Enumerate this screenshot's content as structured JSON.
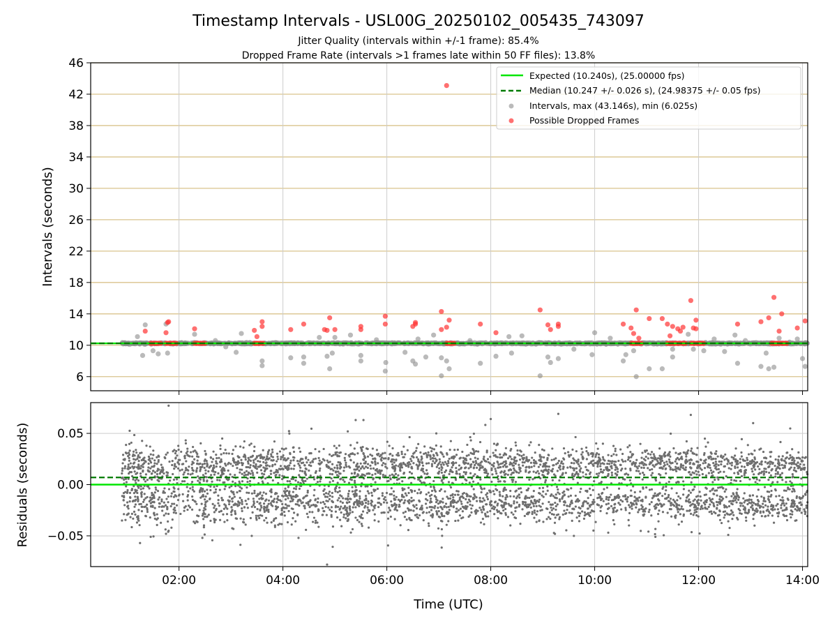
{
  "figure": {
    "title": "Timestamp Intervals - USL00G_20250102_005435_743097",
    "subtitle_1": "Jitter Quality (intervals within +/-1 frame): 85.4%",
    "subtitle_2": "Dropped Frame Rate (intervals >1 frames late within 50 FF files): 13.8%",
    "colors": {
      "expected": "#00e600",
      "median": "#007a00",
      "intervals": "#8c8c8c",
      "dropped": "#ff3333",
      "hgrid_top": "#d9c38c",
      "grid": "#cccccc",
      "residuals": "#6e6e6e"
    }
  },
  "chart_data": [
    {
      "type": "scatter",
      "name": "intervals-panel",
      "ylabel": "Intervals (seconds)",
      "ylim": [
        4.2,
        46
      ],
      "yticks": [
        "6",
        "10",
        "14",
        "18",
        "22",
        "26",
        "30",
        "34",
        "38",
        "42",
        "46"
      ],
      "ytick_values": [
        6,
        10,
        14,
        18,
        22,
        26,
        30,
        34,
        38,
        42,
        46
      ],
      "xlim_hours": [
        0.3,
        14.1
      ],
      "grid": "horizontal gridlines at y ticks, vertical gridlines at x ticks",
      "legend_position": "upper right",
      "legend": [
        {
          "label": "Expected (10.240s), (25.00000 fps)",
          "style": "solid-line",
          "color": "#00e600"
        },
        {
          "label": "Median (10.247 +/- 0.026 s), (24.98375 +/- 0.05 fps)",
          "style": "dashed-line",
          "color": "#007a00"
        },
        {
          "label": "Intervals, max (43.146s), min (6.025s)",
          "style": "dot",
          "color": "#8c8c8c"
        },
        {
          "label": "Possible Dropped Frames",
          "style": "dot",
          "color": "#ff3333"
        }
      ],
      "expected_value": 10.24,
      "median_value": 10.247,
      "intervals_outliers": [
        [
          1.2,
          11.1
        ],
        [
          1.35,
          12.6
        ],
        [
          1.3,
          8.7
        ],
        [
          1.5,
          9.3
        ],
        [
          1.6,
          8.9
        ],
        [
          1.75,
          12.7
        ],
        [
          1.78,
          9.0
        ],
        [
          2.3,
          11.4
        ],
        [
          2.7,
          10.6
        ],
        [
          2.9,
          9.8
        ],
        [
          3.1,
          9.1
        ],
        [
          3.2,
          11.5
        ],
        [
          3.6,
          7.4
        ],
        [
          3.6,
          8.0
        ],
        [
          4.15,
          8.4
        ],
        [
          4.4,
          7.7
        ],
        [
          4.4,
          8.5
        ],
        [
          4.7,
          11.0
        ],
        [
          4.85,
          8.6
        ],
        [
          4.9,
          7.0
        ],
        [
          4.95,
          9.0
        ],
        [
          5.0,
          11.0
        ],
        [
          5.3,
          11.3
        ],
        [
          5.5,
          8.7
        ],
        [
          5.5,
          8.0
        ],
        [
          5.8,
          10.7
        ],
        [
          5.97,
          6.7
        ],
        [
          5.98,
          7.8
        ],
        [
          6.35,
          9.1
        ],
        [
          6.5,
          8.0
        ],
        [
          6.55,
          7.6
        ],
        [
          6.6,
          10.8
        ],
        [
          6.75,
          8.5
        ],
        [
          6.9,
          11.3
        ],
        [
          7.05,
          6.1
        ],
        [
          7.05,
          8.4
        ],
        [
          7.15,
          8.0
        ],
        [
          7.2,
          7.0
        ],
        [
          7.6,
          10.6
        ],
        [
          7.8,
          7.7
        ],
        [
          8.1,
          8.6
        ],
        [
          8.35,
          11.1
        ],
        [
          8.4,
          9.0
        ],
        [
          8.6,
          11.2
        ],
        [
          8.95,
          6.1
        ],
        [
          9.1,
          8.5
        ],
        [
          9.15,
          7.8
        ],
        [
          9.3,
          8.3
        ],
        [
          9.6,
          9.5
        ],
        [
          9.95,
          8.8
        ],
        [
          10.0,
          11.6
        ],
        [
          10.3,
          10.9
        ],
        [
          10.55,
          8.0
        ],
        [
          10.6,
          8.8
        ],
        [
          10.75,
          9.3
        ],
        [
          10.8,
          6.0
        ],
        [
          11.05,
          7.0
        ],
        [
          11.3,
          7.0
        ],
        [
          11.5,
          8.5
        ],
        [
          11.5,
          9.5
        ],
        [
          11.8,
          11.4
        ],
        [
          11.9,
          9.5
        ],
        [
          12.1,
          9.3
        ],
        [
          12.3,
          10.8
        ],
        [
          12.5,
          9.2
        ],
        [
          12.7,
          11.3
        ],
        [
          12.75,
          7.7
        ],
        [
          12.9,
          10.6
        ],
        [
          13.2,
          7.3
        ],
        [
          13.3,
          9.0
        ],
        [
          13.35,
          7.0
        ],
        [
          13.45,
          7.2
        ],
        [
          13.55,
          10.9
        ],
        [
          13.75,
          10.4
        ],
        [
          13.9,
          10.8
        ],
        [
          14.0,
          8.3
        ],
        [
          14.05,
          7.3
        ]
      ],
      "dropped_clusters": [
        {
          "x_start": 1.45,
          "x_end": 1.65,
          "y": 10.24
        },
        {
          "x_start": 1.75,
          "x_end": 1.95,
          "y": 10.24
        },
        {
          "x_start": 2.3,
          "x_end": 2.5,
          "y": 10.24
        },
        {
          "x_start": 3.45,
          "x_end": 3.62,
          "y": 10.24
        },
        {
          "x_start": 7.15,
          "x_end": 7.3,
          "y": 10.24
        },
        {
          "x_start": 10.7,
          "x_end": 10.9,
          "y": 10.24
        },
        {
          "x_start": 11.4,
          "x_end": 11.75,
          "y": 10.24
        },
        {
          "x_start": 11.85,
          "x_end": 12.1,
          "y": 10.24
        },
        {
          "x_start": 13.4,
          "x_end": 13.7,
          "y": 10.24
        }
      ],
      "dropped_frames": [
        [
          1.35,
          11.8
        ],
        [
          1.78,
          12.9
        ],
        [
          1.8,
          13.0
        ],
        [
          1.75,
          11.6
        ],
        [
          2.3,
          12.1
        ],
        [
          3.45,
          11.9
        ],
        [
          3.5,
          11.1
        ],
        [
          3.6,
          12.4
        ],
        [
          3.6,
          13.0
        ],
        [
          4.15,
          12.0
        ],
        [
          4.4,
          12.7
        ],
        [
          4.8,
          12.0
        ],
        [
          4.9,
          13.5
        ],
        [
          4.85,
          11.9
        ],
        [
          5.0,
          12.0
        ],
        [
          5.5,
          12.4
        ],
        [
          5.5,
          12.0
        ],
        [
          5.97,
          13.7
        ],
        [
          5.97,
          12.7
        ],
        [
          6.55,
          12.9
        ],
        [
          6.55,
          12.7
        ],
        [
          6.5,
          12.4
        ],
        [
          7.05,
          14.3
        ],
        [
          7.05,
          12.0
        ],
        [
          7.15,
          12.3
        ],
        [
          7.2,
          13.2
        ],
        [
          7.15,
          43.1
        ],
        [
          7.8,
          12.7
        ],
        [
          8.1,
          11.6
        ],
        [
          8.95,
          14.5
        ],
        [
          9.1,
          12.6
        ],
        [
          9.15,
          12.0
        ],
        [
          9.3,
          12.7
        ],
        [
          9.3,
          12.4
        ],
        [
          10.55,
          12.7
        ],
        [
          10.7,
          12.2
        ],
        [
          10.8,
          14.5
        ],
        [
          10.75,
          11.5
        ],
        [
          10.85,
          10.9
        ],
        [
          11.05,
          13.4
        ],
        [
          11.3,
          13.4
        ],
        [
          11.4,
          12.7
        ],
        [
          11.5,
          12.4
        ],
        [
          11.45,
          11.2
        ],
        [
          11.6,
          12.1
        ],
        [
          11.7,
          12.3
        ],
        [
          11.65,
          11.8
        ],
        [
          11.85,
          15.7
        ],
        [
          11.9,
          12.2
        ],
        [
          11.95,
          13.2
        ],
        [
          11.95,
          12.1
        ],
        [
          12.75,
          12.7
        ],
        [
          13.2,
          13.0
        ],
        [
          13.35,
          13.5
        ],
        [
          13.45,
          16.1
        ],
        [
          13.6,
          14.0
        ],
        [
          13.55,
          11.8
        ],
        [
          13.9,
          12.2
        ],
        [
          14.05,
          13.1
        ]
      ]
    },
    {
      "type": "scatter",
      "name": "residuals-panel",
      "xlabel": "Time (UTC)",
      "ylabel": "Residuals (seconds)",
      "ylim": [
        -0.08,
        0.08
      ],
      "yticks": [
        "−0.05",
        "0.00",
        "0.05"
      ],
      "ytick_values": [
        -0.05,
        0.0,
        0.05
      ],
      "xlim_hours": [
        0.3,
        14.1
      ],
      "xticks": [
        "02:00",
        "04:00",
        "06:00",
        "08:00",
        "10:00",
        "12:00",
        "14:00"
      ],
      "xtick_values": [
        2,
        4,
        6,
        8,
        10,
        12,
        14
      ],
      "grid": "horizontal and vertical gridlines at ticks",
      "expected_value": 0.0,
      "median_value": 0.007,
      "data_x_range_hours": [
        0.9,
        14.1
      ],
      "residual_band": {
        "center": 0.0,
        "spread": 0.045,
        "typical_bands": [
          -0.02,
          0.02
        ]
      },
      "residual_outliers": [
        [
          1.8,
          0.077
        ],
        [
          1.25,
          -0.057
        ],
        [
          1.75,
          -0.048
        ],
        [
          1.8,
          -0.045
        ],
        [
          2.45,
          -0.052
        ],
        [
          3.4,
          -0.05
        ],
        [
          4.3,
          -0.052
        ],
        [
          4.85,
          -0.078
        ],
        [
          5.4,
          0.063
        ],
        [
          5.55,
          0.063
        ],
        [
          8.0,
          0.064
        ],
        [
          9.3,
          0.069
        ],
        [
          9.6,
          -0.05
        ],
        [
          11.85,
          0.068
        ],
        [
          13.05,
          0.06
        ]
      ]
    }
  ]
}
